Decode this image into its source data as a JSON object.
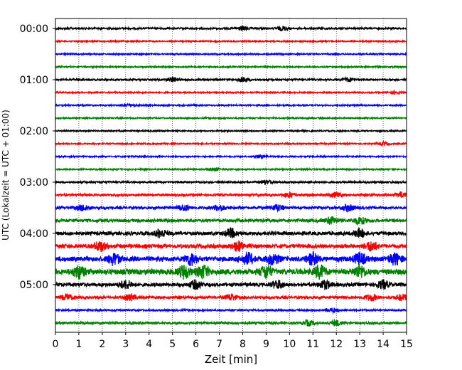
{
  "chart_data": {
    "type": "line",
    "xlabel": "Zeit  [min]",
    "ylabel": "UTC (Lokalzeit = UTC + 01:00)",
    "xlim": [
      0,
      15
    ],
    "x_ticks": [
      0,
      1,
      2,
      3,
      4,
      5,
      6,
      7,
      8,
      9,
      10,
      11,
      12,
      13,
      14,
      15
    ],
    "x_grid": "dotted vertical at each minute",
    "y_ticks": [
      "00:00",
      "01:00",
      "02:00",
      "03:00",
      "04:00",
      "05:00"
    ],
    "trace_colors": [
      "#000000",
      "#ff0000",
      "#0000ff",
      "#008000"
    ],
    "traces": [
      {
        "start": "00:00",
        "amplitude": 0.2,
        "bursts": [
          8.0,
          9.7
        ]
      },
      {
        "start": "00:15",
        "amplitude": 0.15,
        "bursts": []
      },
      {
        "start": "00:30",
        "amplitude": 0.15,
        "bursts": []
      },
      {
        "start": "00:45",
        "amplitude": 0.15,
        "bursts": []
      },
      {
        "start": "01:00",
        "amplitude": 0.2,
        "bursts": [
          5.0,
          8.0,
          12.5
        ]
      },
      {
        "start": "01:15",
        "amplitude": 0.15,
        "bursts": [
          14.5
        ]
      },
      {
        "start": "01:30",
        "amplitude": 0.15,
        "bursts": [
          3.2
        ]
      },
      {
        "start": "01:45",
        "amplitude": 0.15,
        "bursts": []
      },
      {
        "start": "02:00",
        "amplitude": 0.15,
        "bursts": []
      },
      {
        "start": "02:15",
        "amplitude": 0.15,
        "bursts": [
          14.0
        ]
      },
      {
        "start": "02:30",
        "amplitude": 0.15,
        "bursts": [
          8.8
        ]
      },
      {
        "start": "02:45",
        "amplitude": 0.15,
        "bursts": [
          6.8
        ]
      },
      {
        "start": "03:00",
        "amplitude": 0.2,
        "bursts": [
          9.0
        ]
      },
      {
        "start": "03:15",
        "amplitude": 0.25,
        "bursts": [
          10.0,
          12.0,
          14.8
        ]
      },
      {
        "start": "03:30",
        "amplitude": 0.3,
        "bursts": [
          1.2,
          5.5,
          7.0,
          9.5,
          12.5
        ]
      },
      {
        "start": "03:45",
        "amplitude": 0.35,
        "bursts": [
          11.8,
          13.0
        ]
      },
      {
        "start": "04:00",
        "amplitude": 0.4,
        "bursts": [
          4.5,
          7.5,
          13.0
        ]
      },
      {
        "start": "04:15",
        "amplitude": 0.45,
        "bursts": [
          1.9,
          7.8,
          13.5
        ]
      },
      {
        "start": "04:30",
        "amplitude": 0.55,
        "bursts": [
          2.5,
          5.8,
          8.2,
          9.3,
          11.0,
          13.0,
          14.5
        ]
      },
      {
        "start": "04:45",
        "amplitude": 0.6,
        "bursts": [
          1.0,
          5.5,
          6.3,
          9.0,
          11.3,
          13.0
        ]
      },
      {
        "start": "05:00",
        "amplitude": 0.4,
        "bursts": [
          3.0,
          6.0,
          9.5,
          11.5,
          14.0
        ]
      },
      {
        "start": "05:15",
        "amplitude": 0.3,
        "bursts": [
          0.5,
          3.2,
          7.5,
          13.5,
          14.8
        ]
      },
      {
        "start": "05:30",
        "amplitude": 0.2,
        "bursts": [
          11.8
        ]
      },
      {
        "start": "05:45",
        "amplitude": 0.25,
        "bursts": [
          10.8,
          12.0
        ]
      }
    ]
  }
}
